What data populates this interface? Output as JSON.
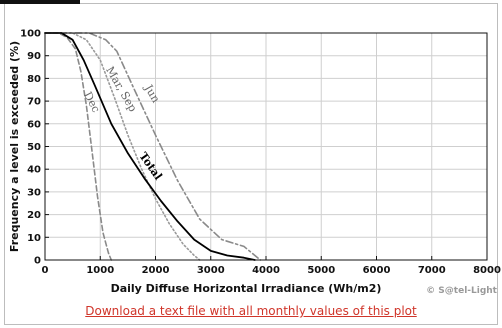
{
  "chart_data": {
    "type": "line",
    "title": "",
    "xlabel": "Daily Diffuse Horizontal Irradiance (Wh/m2)",
    "ylabel": "Frequency a level is exceeded (%)",
    "xlim": [
      0,
      8000
    ],
    "ylim": [
      0,
      100
    ],
    "x_ticks": [
      0,
      1000,
      2000,
      3000,
      4000,
      5000,
      6000,
      7000,
      8000
    ],
    "y_ticks": [
      0,
      10,
      20,
      30,
      40,
      50,
      60,
      70,
      80,
      90,
      100
    ],
    "grid": true,
    "series": [
      {
        "name": "Dec",
        "color": "#8a8a8a",
        "style": "dashed",
        "x": [
          0,
          250,
          400,
          550,
          650,
          750,
          850,
          950,
          1050,
          1150,
          1200
        ],
        "y": [
          100,
          100,
          98,
          93,
          83,
          68,
          48,
          28,
          12,
          3,
          0
        ]
      },
      {
        "name": "Mar, Sep",
        "color": "#9a9a9a",
        "style": "dotted",
        "x": [
          0,
          500,
          750,
          1000,
          1250,
          1500,
          1750,
          2000,
          2250,
          2500,
          2700,
          2800
        ],
        "y": [
          100,
          100,
          97,
          88,
          72,
          55,
          40,
          27,
          16,
          7,
          2,
          0
        ]
      },
      {
        "name": "Jun",
        "color": "#8a8a8a",
        "style": "dashdot",
        "x": [
          0,
          800,
          1100,
          1300,
          1600,
          2000,
          2400,
          2800,
          3200,
          3600,
          3800,
          3900
        ],
        "y": [
          100,
          100,
          97,
          92,
          76,
          55,
          35,
          18,
          9,
          6,
          2,
          0
        ]
      },
      {
        "name": "Total",
        "color": "#000000",
        "style": "solid",
        "x": [
          0,
          300,
          500,
          700,
          900,
          1200,
          1500,
          1800,
          2100,
          2400,
          2700,
          3000,
          3300,
          3600,
          3800
        ],
        "y": [
          100,
          100,
          97,
          88,
          77,
          60,
          47,
          36,
          26,
          17,
          9,
          4,
          2,
          1,
          0
        ]
      }
    ],
    "annotations": [
      {
        "text": "Dec",
        "x": 700,
        "y": 73,
        "rotate": 62,
        "bold": false
      },
      {
        "text": "Mar, Sep",
        "x": 1100,
        "y": 84,
        "rotate": 60,
        "bold": false
      },
      {
        "text": "Jun",
        "x": 1800,
        "y": 76,
        "rotate": 60,
        "bold": false
      },
      {
        "text": "Total",
        "x": 1700,
        "y": 46,
        "rotate": 55,
        "bold": true
      }
    ]
  },
  "watermark": "© S@tel-Light",
  "download_link": "Download a text file with all monthly values of this plot"
}
